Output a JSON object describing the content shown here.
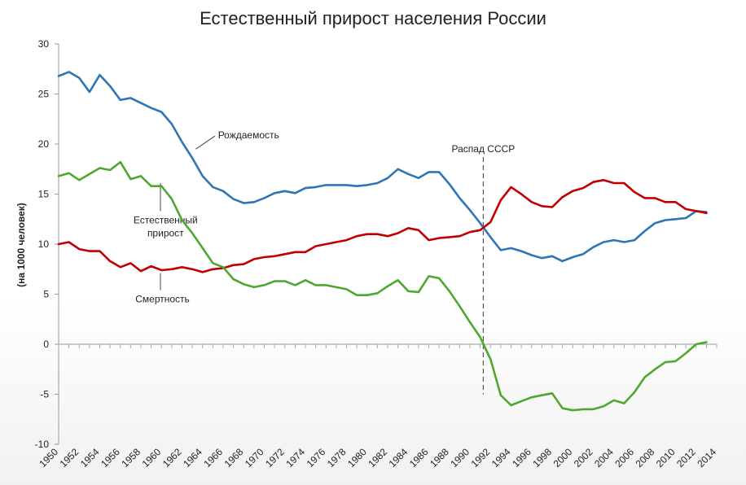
{
  "chart_data": {
    "type": "line",
    "title": "Естественный прирост населения России",
    "ylabel": "(на 1000 человек)",
    "xlabel": "",
    "ylim": [
      -10,
      30
    ],
    "xlim": [
      1950,
      2014
    ],
    "yticks": [
      "30",
      "25",
      "20",
      "15",
      "10",
      "5",
      "0",
      "-5",
      "-10"
    ],
    "xticks": [
      "1950",
      "1952",
      "1954",
      "1956",
      "1958",
      "1960",
      "1962",
      "1964",
      "1966",
      "1968",
      "1970",
      "1972",
      "1974",
      "1976",
      "1978",
      "1980",
      "1982",
      "1984",
      "1986",
      "1988",
      "1990",
      "1992",
      "1994",
      "1996",
      "1998",
      "2000",
      "2002",
      "2004",
      "2006",
      "2008",
      "2010",
      "2012",
      "2014"
    ],
    "grid": false,
    "x": [
      1950,
      1951,
      1952,
      1953,
      1954,
      1955,
      1956,
      1957,
      1958,
      1959,
      1960,
      1961,
      1962,
      1963,
      1964,
      1965,
      1966,
      1967,
      1968,
      1969,
      1970,
      1971,
      1972,
      1973,
      1974,
      1975,
      1976,
      1977,
      1978,
      1979,
      1980,
      1981,
      1982,
      1983,
      1984,
      1985,
      1986,
      1987,
      1988,
      1989,
      1990,
      1991,
      1992,
      1993,
      1994,
      1995,
      1996,
      1997,
      1998,
      1999,
      2000,
      2001,
      2002,
      2003,
      2004,
      2005,
      2006,
      2007,
      2008,
      2009,
      2010,
      2011,
      2012,
      2013
    ],
    "series": [
      {
        "name": "Рождаемость",
        "color": "#2e75b6",
        "values": [
          26.8,
          27.2,
          26.6,
          25.2,
          26.9,
          25.8,
          24.4,
          24.6,
          24.1,
          23.6,
          23.2,
          22.0,
          20.2,
          18.6,
          16.8,
          15.7,
          15.3,
          14.5,
          14.1,
          14.2,
          14.6,
          15.1,
          15.3,
          15.1,
          15.6,
          15.7,
          15.9,
          15.9,
          15.9,
          15.8,
          15.9,
          16.1,
          16.6,
          17.5,
          17.0,
          16.6,
          17.2,
          17.2,
          16.0,
          14.6,
          13.4,
          12.1,
          10.7,
          9.4,
          9.6,
          9.3,
          8.9,
          8.6,
          8.8,
          8.3,
          8.7,
          9.0,
          9.7,
          10.2,
          10.4,
          10.2,
          10.4,
          11.3,
          12.1,
          12.4,
          12.5,
          12.6,
          13.3,
          13.2
        ]
      },
      {
        "name": "Смертность",
        "color": "#c00000",
        "values": [
          10.0,
          10.2,
          9.5,
          9.3,
          9.3,
          8.3,
          7.7,
          8.1,
          7.3,
          7.8,
          7.4,
          7.5,
          7.7,
          7.5,
          7.2,
          7.5,
          7.6,
          7.9,
          8.0,
          8.5,
          8.7,
          8.8,
          9.0,
          9.2,
          9.2,
          9.8,
          10.0,
          10.2,
          10.4,
          10.8,
          11.0,
          11.0,
          10.8,
          11.1,
          11.6,
          11.4,
          10.4,
          10.6,
          10.7,
          10.8,
          11.2,
          11.4,
          12.2,
          14.4,
          15.7,
          15.0,
          14.2,
          13.8,
          13.7,
          14.7,
          15.3,
          15.6,
          16.2,
          16.4,
          16.1,
          16.1,
          15.2,
          14.6,
          14.6,
          14.2,
          14.2,
          13.5,
          13.3,
          13.1
        ]
      },
      {
        "name": "Естественный прирост",
        "color": "#4ea72e",
        "values": [
          16.8,
          17.1,
          16.4,
          17.0,
          17.6,
          17.4,
          18.2,
          16.5,
          16.8,
          15.8,
          15.8,
          14.5,
          12.4,
          11.1,
          9.6,
          8.1,
          7.7,
          6.5,
          6.0,
          5.7,
          5.9,
          6.3,
          6.3,
          5.9,
          6.4,
          5.9,
          5.9,
          5.7,
          5.5,
          4.9,
          4.9,
          5.1,
          5.8,
          6.4,
          5.3,
          5.2,
          6.8,
          6.6,
          5.3,
          3.8,
          2.2,
          0.7,
          -1.5,
          -5.1,
          -6.1,
          -5.7,
          -5.3,
          -5.1,
          -4.9,
          -6.4,
          -6.6,
          -6.5,
          -6.5,
          -6.2,
          -5.6,
          -5.9,
          -4.8,
          -3.3,
          -2.5,
          -1.8,
          -1.7,
          -0.9,
          0.0,
          0.2
        ]
      }
    ],
    "annotations": {
      "births": "Рождаемость",
      "natural_line1": "Естественный",
      "natural_line2": "прирост",
      "deaths": "Смертность",
      "ussr_collapse": "Распад СССР",
      "ussr_year": 1991.3
    }
  }
}
